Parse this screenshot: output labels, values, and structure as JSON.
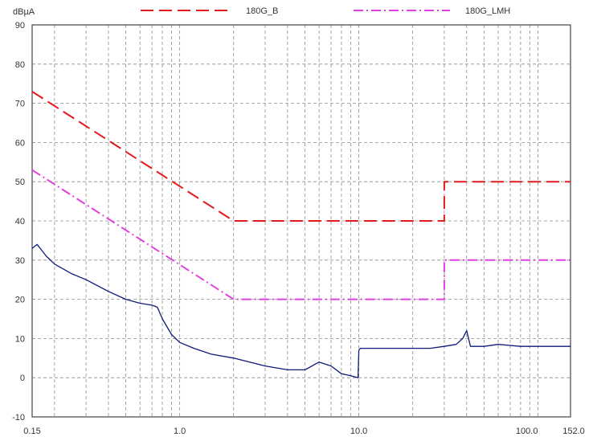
{
  "chart_data": {
    "type": "line",
    "y_unit": "dBµA",
    "x_scale": "log",
    "xlim": [
      0.15,
      152.0
    ],
    "ylim": [
      -10,
      90
    ],
    "grid": true,
    "legend_position": "top",
    "y_ticks": [
      "90",
      "80",
      "70",
      "60",
      "50",
      "40",
      "30",
      "20",
      "10",
      "0",
      "-10"
    ],
    "y_tick_values": [
      90,
      80,
      70,
      60,
      50,
      40,
      30,
      20,
      10,
      0,
      -10
    ],
    "x_ticks": [
      "0.15",
      "1.0",
      "10.0",
      "100.0",
      "152.0"
    ],
    "x_tick_values": [
      0.15,
      1.0,
      10.0,
      100.0,
      152.0
    ],
    "series": [
      {
        "name": "180G_B",
        "color": "#e31a1c",
        "style": "dashed",
        "points": [
          [
            0.15,
            73
          ],
          [
            2.0,
            40
          ],
          [
            30.0,
            40
          ],
          [
            30.0,
            50
          ],
          [
            152.0,
            50
          ]
        ]
      },
      {
        "name": "180G_LMH",
        "color": "#e040e0",
        "style": "dashdot",
        "points": [
          [
            0.15,
            53
          ],
          [
            2.0,
            20
          ],
          [
            30.0,
            20
          ],
          [
            30.0,
            30
          ],
          [
            152.0,
            30
          ]
        ]
      },
      {
        "name": "",
        "color": "#0d1a7a",
        "style": "solid",
        "points": [
          [
            0.15,
            33
          ],
          [
            0.16,
            34
          ],
          [
            0.18,
            31
          ],
          [
            0.2,
            29
          ],
          [
            0.25,
            26.5
          ],
          [
            0.3,
            25
          ],
          [
            0.4,
            22
          ],
          [
            0.5,
            20
          ],
          [
            0.6,
            19
          ],
          [
            0.7,
            18.5
          ],
          [
            0.75,
            18
          ],
          [
            0.8,
            15
          ],
          [
            0.9,
            11
          ],
          [
            1.0,
            9
          ],
          [
            1.2,
            7.5
          ],
          [
            1.5,
            6
          ],
          [
            2.0,
            5
          ],
          [
            3.0,
            3
          ],
          [
            4.0,
            2
          ],
          [
            5.0,
            2
          ],
          [
            6.0,
            4
          ],
          [
            7.0,
            3
          ],
          [
            8.0,
            1
          ],
          [
            9.0,
            0.5
          ],
          [
            9.9,
            0
          ],
          [
            10.0,
            7
          ],
          [
            10.2,
            7.5
          ],
          [
            15.0,
            7.5
          ],
          [
            20.0,
            7.5
          ],
          [
            25.0,
            7.5
          ],
          [
            30.0,
            8
          ],
          [
            35.0,
            8.5
          ],
          [
            38.0,
            10
          ],
          [
            40.0,
            12
          ],
          [
            42.0,
            8
          ],
          [
            50.0,
            8
          ],
          [
            60.0,
            8.5
          ],
          [
            80.0,
            8
          ],
          [
            100.0,
            8
          ],
          [
            130.0,
            8
          ],
          [
            152.0,
            8
          ]
        ]
      }
    ]
  },
  "colors": {
    "background": "#ffffff",
    "grid": "#8c8c8c",
    "frame": "#444444"
  }
}
